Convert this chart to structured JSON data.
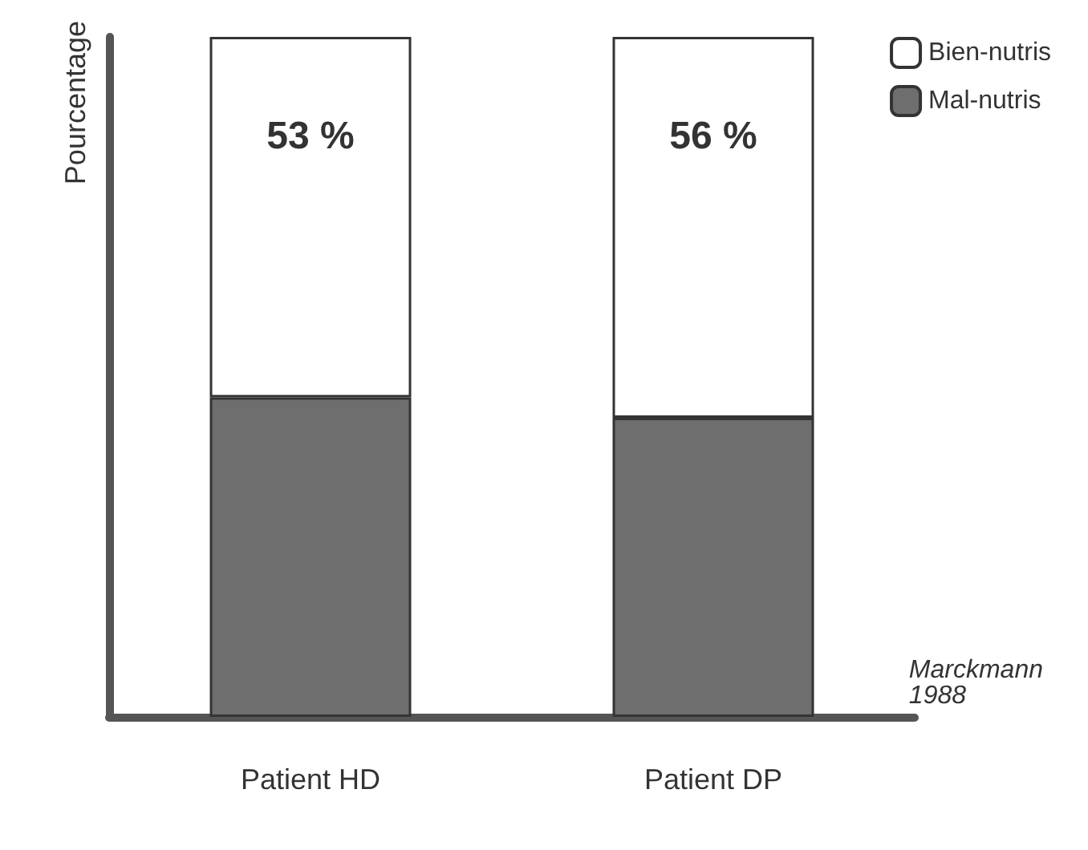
{
  "chart_data": {
    "type": "bar",
    "stacked": true,
    "ylabel": "Pourcentage",
    "categories": [
      "Patient HD",
      "Patient DP"
    ],
    "series": [
      {
        "name": "Mal-nutris",
        "color": "#6e6e6e",
        "values": [
          47,
          44
        ]
      },
      {
        "name": "Bien-nutris",
        "color": "#ffffff",
        "values": [
          53,
          56
        ],
        "value_labels": [
          "53 %",
          "56 %"
        ]
      }
    ],
    "ylim": [
      0,
      100
    ],
    "tick_labels": "x",
    "legend": "top right",
    "grid": false,
    "annotations": [
      "Marckmann\n1988"
    ]
  }
}
